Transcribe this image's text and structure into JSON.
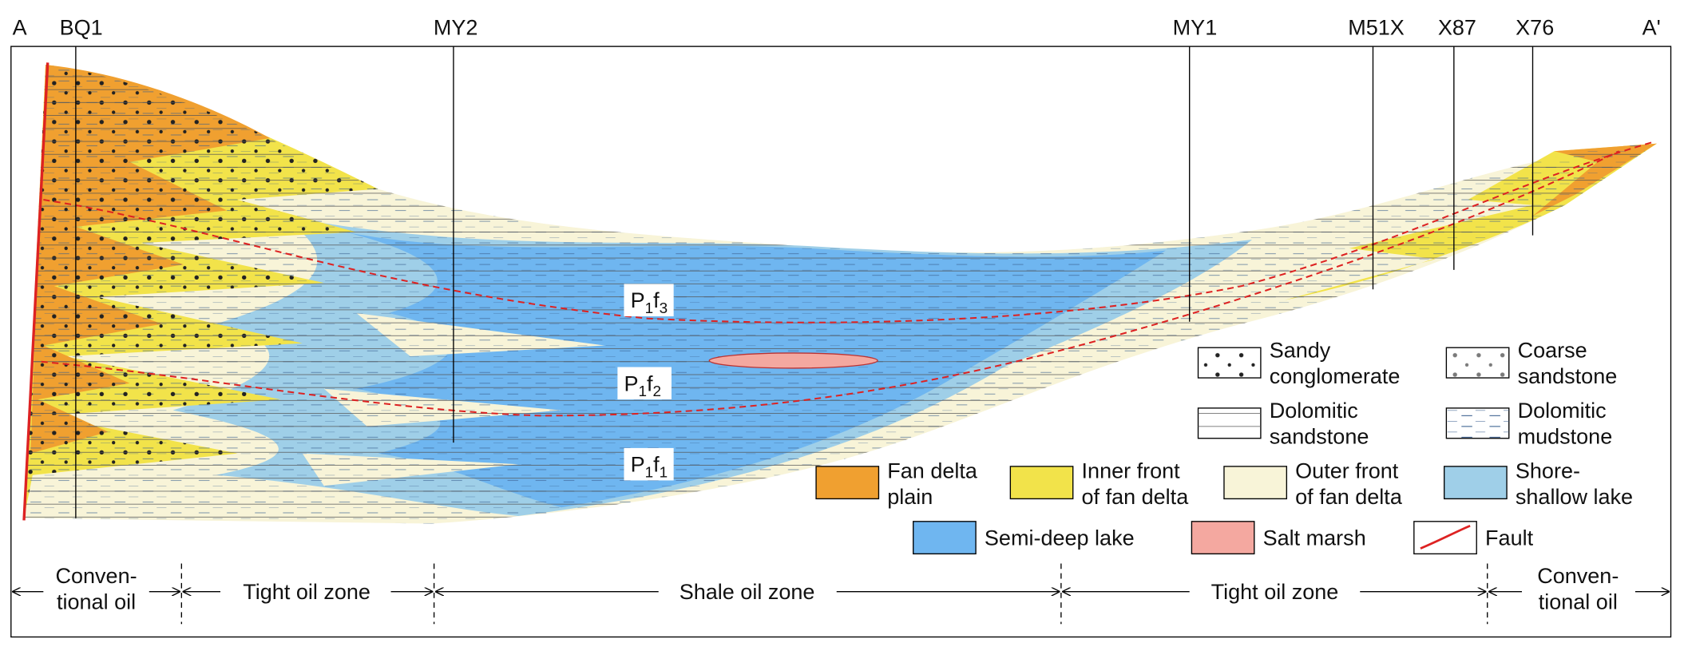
{
  "section_ends": {
    "left": "A",
    "right": "A'"
  },
  "wells": [
    "BQ1",
    "MY2",
    "MY1",
    "M51X",
    "X87",
    "X76"
  ],
  "members": [
    {
      "parts": [
        "P",
        "1",
        "f",
        "3"
      ]
    },
    {
      "parts": [
        "P",
        "1",
        "f",
        "2"
      ]
    },
    {
      "parts": [
        "P",
        "1",
        "f",
        "1"
      ]
    }
  ],
  "legend": {
    "lithology": [
      {
        "lines": [
          "Sandy",
          "conglomerate"
        ]
      },
      {
        "lines": [
          "Coarse",
          "sandstone"
        ]
      },
      {
        "lines": [
          "Dolomitic",
          "sandstone"
        ]
      },
      {
        "lines": [
          "Dolomitic",
          "mudstone"
        ]
      }
    ],
    "facies": [
      {
        "lines": [
          "Fan delta",
          "plain"
        ]
      },
      {
        "lines": [
          "Inner front",
          "of fan delta"
        ]
      },
      {
        "lines": [
          "Outer front",
          "of fan delta"
        ]
      },
      {
        "lines": [
          "Shore-",
          "shallow lake"
        ]
      },
      {
        "lines": [
          "Semi-deep lake"
        ]
      },
      {
        "lines": [
          "Salt marsh"
        ]
      },
      {
        "lines": [
          "Fault"
        ]
      }
    ]
  },
  "zones": [
    {
      "lines": [
        "Conven-",
        "tional oil"
      ]
    },
    {
      "lines": [
        "Tight oil zone"
      ]
    },
    {
      "lines": [
        "Shale oil zone"
      ]
    },
    {
      "lines": [
        "Tight oil zone"
      ]
    },
    {
      "lines": [
        "Conven-",
        "tional oil"
      ]
    }
  ]
}
